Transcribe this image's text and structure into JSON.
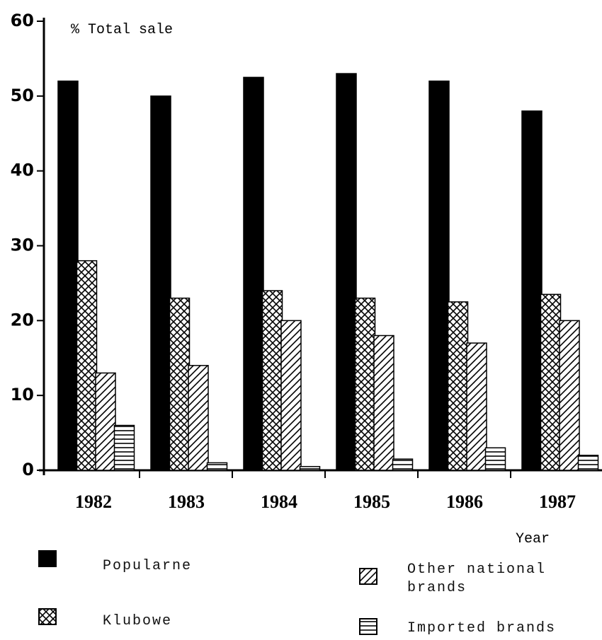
{
  "chart_data": {
    "type": "bar",
    "y_label": "% Total sale",
    "x_label": "Year",
    "categories": [
      "1982",
      "1983",
      "1984",
      "1985",
      "1986",
      "1987"
    ],
    "series": [
      {
        "name": "Popularne",
        "color": "#000000",
        "pattern": "solid",
        "values": [
          52,
          50,
          52.5,
          53,
          52,
          48
        ]
      },
      {
        "name": "Klubowe",
        "color": "#000000",
        "pattern": "crosshatch",
        "values": [
          28,
          23,
          24,
          23,
          22.5,
          23.5
        ]
      },
      {
        "name": "Other national brands",
        "color": "#000000",
        "pattern": "diagonal",
        "values": [
          13,
          14,
          20,
          18,
          17,
          20
        ]
      },
      {
        "name": "Imported brands",
        "color": "#000000",
        "pattern": "horizontal",
        "values": [
          6,
          1,
          0.5,
          1.5,
          3,
          2
        ]
      }
    ],
    "ylim": [
      0,
      60
    ],
    "yticks": [
      0,
      10,
      20,
      30,
      40,
      50,
      60
    ]
  }
}
